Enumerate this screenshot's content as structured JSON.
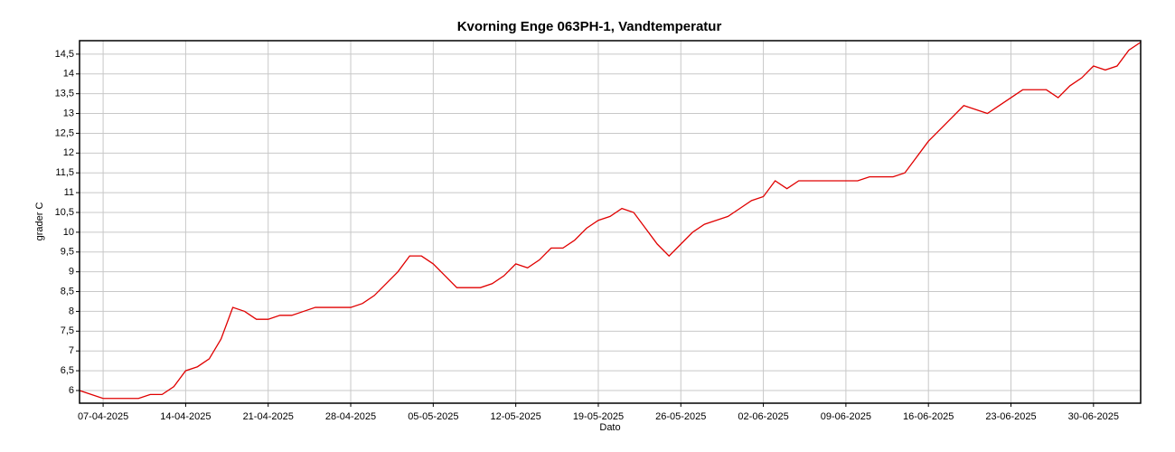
{
  "chart_data": {
    "type": "line",
    "title": "Kvorning Enge 063PH-1, Vandtemperatur",
    "x_label": "Dato",
    "y_label": "grader C",
    "x": [
      "05-04-2025",
      "06-04-2025",
      "07-04-2025",
      "08-04-2025",
      "09-04-2025",
      "10-04-2025",
      "11-04-2025",
      "12-04-2025",
      "13-04-2025",
      "14-04-2025",
      "15-04-2025",
      "16-04-2025",
      "17-04-2025",
      "18-04-2025",
      "19-04-2025",
      "20-04-2025",
      "21-04-2025",
      "22-04-2025",
      "23-04-2025",
      "24-04-2025",
      "25-04-2025",
      "26-04-2025",
      "27-04-2025",
      "28-04-2025",
      "29-04-2025",
      "30-04-2025",
      "01-05-2025",
      "02-05-2025",
      "03-05-2025",
      "04-05-2025",
      "05-05-2025",
      "06-05-2025",
      "07-05-2025",
      "08-05-2025",
      "09-05-2025",
      "10-05-2025",
      "11-05-2025",
      "12-05-2025",
      "13-05-2025",
      "14-05-2025",
      "15-05-2025",
      "16-05-2025",
      "17-05-2025",
      "18-05-2025",
      "19-05-2025",
      "20-05-2025",
      "21-05-2025",
      "22-05-2025",
      "23-05-2025",
      "24-05-2025",
      "25-05-2025",
      "26-05-2025",
      "27-05-2025",
      "28-05-2025",
      "29-05-2025",
      "30-05-2025",
      "31-05-2025",
      "01-06-2025",
      "02-06-2025",
      "03-06-2025",
      "04-06-2025",
      "05-06-2025",
      "06-06-2025",
      "07-06-2025",
      "08-06-2025",
      "09-06-2025",
      "10-06-2025",
      "11-06-2025",
      "12-06-2025",
      "13-06-2025",
      "14-06-2025",
      "15-06-2025",
      "16-06-2025",
      "17-06-2025",
      "18-06-2025",
      "19-06-2025",
      "20-06-2025",
      "21-06-2025",
      "22-06-2025",
      "23-06-2025",
      "24-06-2025",
      "25-06-2025",
      "26-06-2025",
      "27-06-2025",
      "28-06-2025",
      "29-06-2025",
      "30-06-2025",
      "01-07-2025",
      "02-07-2025",
      "03-07-2025",
      "04-07-2025"
    ],
    "series": [
      {
        "name": "Vandtemperatur",
        "color": "#e00000",
        "values": [
          6.0,
          5.9,
          5.8,
          5.8,
          5.8,
          5.8,
          5.9,
          5.9,
          6.1,
          6.5,
          6.6,
          6.8,
          7.3,
          8.1,
          8.0,
          7.8,
          7.8,
          7.9,
          7.9,
          8.0,
          8.1,
          8.1,
          8.1,
          8.1,
          8.2,
          8.4,
          8.7,
          9.0,
          9.4,
          9.4,
          9.2,
          8.9,
          8.6,
          8.6,
          8.6,
          8.7,
          8.9,
          9.2,
          9.1,
          9.3,
          9.6,
          9.6,
          9.8,
          10.1,
          10.3,
          10.4,
          10.6,
          10.5,
          10.1,
          9.7,
          9.4,
          9.7,
          10.0,
          10.2,
          10.3,
          10.4,
          10.6,
          10.8,
          10.9,
          11.3,
          11.1,
          11.3,
          11.3,
          11.3,
          11.3,
          11.3,
          11.3,
          11.4,
          11.4,
          11.4,
          11.5,
          11.9,
          12.3,
          12.6,
          12.9,
          13.2,
          13.1,
          13.0,
          13.2,
          13.4,
          13.6,
          13.6,
          13.6,
          13.4,
          13.7,
          13.9,
          14.2,
          14.1,
          14.2,
          14.6,
          14.8
        ]
      }
    ],
    "xlim": [
      "05-04-2025",
      "04-07-2025"
    ],
    "xticks": [
      "07-04-2025",
      "14-04-2025",
      "21-04-2025",
      "28-04-2025",
      "05-05-2025",
      "12-05-2025",
      "19-05-2025",
      "26-05-2025",
      "02-06-2025",
      "09-06-2025",
      "16-06-2025",
      "23-06-2025",
      "30-06-2025"
    ],
    "ylim": [
      5.68,
      14.84
    ],
    "yticks": [
      {
        "value": 6,
        "label": "6"
      },
      {
        "value": 6.5,
        "label": "6,5"
      },
      {
        "value": 7,
        "label": "7"
      },
      {
        "value": 7.5,
        "label": "7,5"
      },
      {
        "value": 8,
        "label": "8"
      },
      {
        "value": 8.5,
        "label": "8,5"
      },
      {
        "value": 9,
        "label": "9"
      },
      {
        "value": 9.5,
        "label": "9,5"
      },
      {
        "value": 10,
        "label": "10"
      },
      {
        "value": 10.5,
        "label": "10,5"
      },
      {
        "value": 11,
        "label": "11"
      },
      {
        "value": 11.5,
        "label": "11,5"
      },
      {
        "value": 12,
        "label": "12"
      },
      {
        "value": 12.5,
        "label": "12,5"
      },
      {
        "value": 13,
        "label": "13"
      },
      {
        "value": 13.5,
        "label": "13,5"
      },
      {
        "value": 14,
        "label": "14"
      },
      {
        "value": 14.5,
        "label": "14,5"
      }
    ],
    "grid": true
  }
}
